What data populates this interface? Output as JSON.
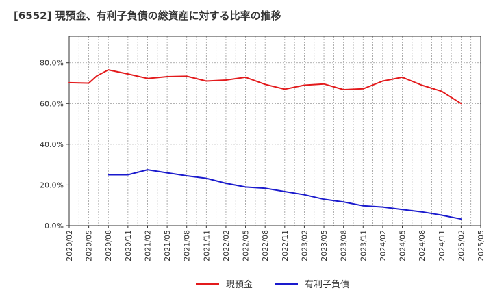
{
  "chart_data": {
    "type": "line",
    "title": "[6552]  現預金、有利子負債の総資産に対する比率の推移",
    "xlabel": "",
    "ylabel": "",
    "ylim": [
      0,
      93
    ],
    "yticks": [
      0,
      20,
      40,
      60,
      80
    ],
    "ytick_labels": [
      "0.0%",
      "20.0%",
      "40.0%",
      "60.0%",
      "80.0%"
    ],
    "categories": [
      "2020/02",
      "2020/05",
      "2020/08",
      "2020/11",
      "2021/02",
      "2021/05",
      "2021/08",
      "2021/11",
      "2022/02",
      "2022/05",
      "2022/08",
      "2022/11",
      "2023/02",
      "2023/05",
      "2023/08",
      "2023/11",
      "2024/02",
      "2024/05",
      "2024/08",
      "2024/11",
      "2025/02",
      "2025/05"
    ],
    "grid": true,
    "legend_position": "bottom",
    "series": [
      {
        "name": "現預金",
        "color": "#e31a1c",
        "points": [
          {
            "x": 0,
            "y": 70.2
          },
          {
            "x": 1,
            "y": 70.0
          },
          {
            "x": 1.4,
            "y": 73.5
          },
          {
            "x": 2,
            "y": 76.5
          },
          {
            "x": 3,
            "y": 74.5
          },
          {
            "x": 4,
            "y": 72.3
          },
          {
            "x": 5,
            "y": 73.2
          },
          {
            "x": 6,
            "y": 73.4
          },
          {
            "x": 7,
            "y": 71.0
          },
          {
            "x": 8,
            "y": 71.5
          },
          {
            "x": 9,
            "y": 72.9
          },
          {
            "x": 10,
            "y": 69.4
          },
          {
            "x": 11,
            "y": 67.0
          },
          {
            "x": 12,
            "y": 69.0
          },
          {
            "x": 13,
            "y": 69.6
          },
          {
            "x": 14,
            "y": 66.8
          },
          {
            "x": 15,
            "y": 67.2
          },
          {
            "x": 16,
            "y": 71.0
          },
          {
            "x": 17,
            "y": 72.9
          },
          {
            "x": 18,
            "y": 69.0
          },
          {
            "x": 19,
            "y": 66.0
          },
          {
            "x": 20,
            "y": 60.0
          }
        ]
      },
      {
        "name": "有利子負債",
        "color": "#1a1acd",
        "points": [
          {
            "x": 2,
            "y": 25.0
          },
          {
            "x": 3,
            "y": 25.0
          },
          {
            "x": 4,
            "y": 27.5
          },
          {
            "x": 5,
            "y": 26.0
          },
          {
            "x": 6,
            "y": 24.5
          },
          {
            "x": 7,
            "y": 23.3
          },
          {
            "x": 8,
            "y": 20.8
          },
          {
            "x": 9,
            "y": 19.0
          },
          {
            "x": 10,
            "y": 18.4
          },
          {
            "x": 11,
            "y": 16.8
          },
          {
            "x": 12,
            "y": 15.2
          },
          {
            "x": 13,
            "y": 13.0
          },
          {
            "x": 14,
            "y": 11.7
          },
          {
            "x": 15,
            "y": 9.8
          },
          {
            "x": 16,
            "y": 9.2
          },
          {
            "x": 17,
            "y": 8.0
          },
          {
            "x": 18,
            "y": 6.8
          },
          {
            "x": 19,
            "y": 5.2
          },
          {
            "x": 20,
            "y": 3.3
          }
        ]
      }
    ]
  }
}
